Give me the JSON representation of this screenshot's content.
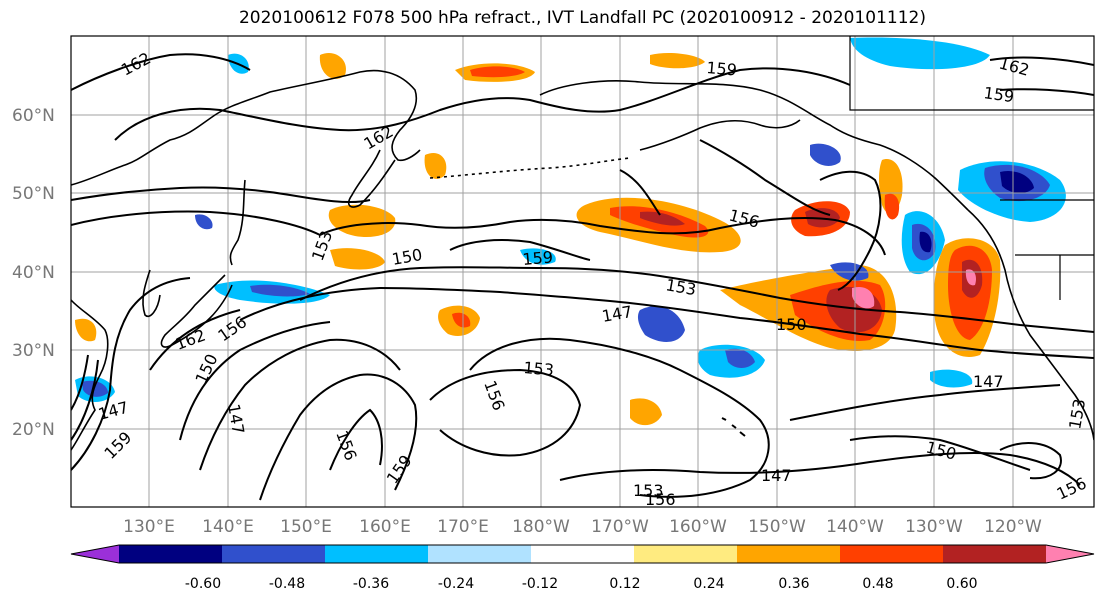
{
  "title": "2020100612 F078 500 hPa refract., IVT Landfall PC (2020100912 - 2020101112)",
  "lat_labels": [
    "60°N",
    "50°N",
    "40°N",
    "30°N",
    "20°N"
  ],
  "lon_labels": [
    "130°E",
    "140°E",
    "150°E",
    "160°E",
    "170°E",
    "180°W",
    "170°W",
    "160°W",
    "150°W",
    "140°W",
    "130°W",
    "120°W"
  ],
  "contour_labels": [
    "162",
    "162",
    "159",
    "162",
    "159",
    "156",
    "153",
    "150",
    "159",
    "153",
    "147",
    "150",
    "162",
    "156",
    "150",
    "153",
    "156",
    "147",
    "147",
    "150",
    "159",
    "159",
    "156",
    "147",
    "153",
    "156",
    "147",
    "156",
    "153"
  ],
  "colorbar": {
    "colors": [
      "#9b30d9",
      "#000080",
      "#3050cc",
      "#00bfff",
      "#b0e2ff",
      "#ffffff",
      "#ffeb80",
      "#ffa500",
      "#ff4000",
      "#b22222",
      "#ff80b0"
    ],
    "labels": [
      "-0.60",
      "-0.48",
      "-0.36",
      "-0.24",
      "-0.12",
      "0.12",
      "0.24",
      "0.36",
      "0.48",
      "0.60"
    ]
  }
}
